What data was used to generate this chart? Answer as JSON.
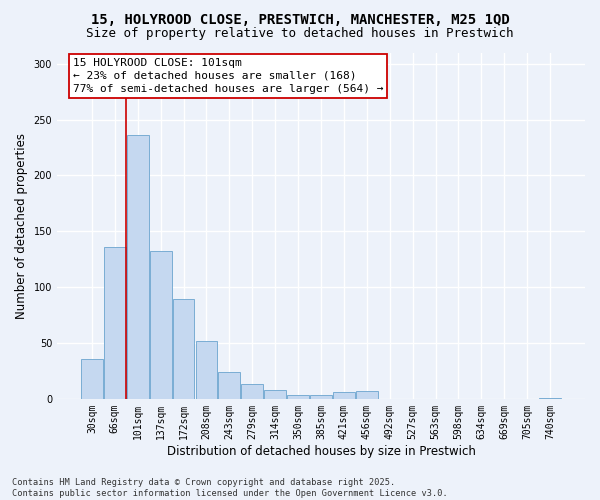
{
  "title_line1": "15, HOLYROOD CLOSE, PRESTWICH, MANCHESTER, M25 1QD",
  "title_line2": "Size of property relative to detached houses in Prestwich",
  "xlabel": "Distribution of detached houses by size in Prestwich",
  "ylabel": "Number of detached properties",
  "categories": [
    "30sqm",
    "66sqm",
    "101sqm",
    "137sqm",
    "172sqm",
    "208sqm",
    "243sqm",
    "279sqm",
    "314sqm",
    "350sqm",
    "385sqm",
    "421sqm",
    "456sqm",
    "492sqm",
    "527sqm",
    "563sqm",
    "598sqm",
    "634sqm",
    "669sqm",
    "705sqm",
    "740sqm"
  ],
  "values": [
    36,
    136,
    236,
    132,
    89,
    52,
    24,
    13,
    8,
    3,
    3,
    6,
    7,
    0,
    0,
    0,
    0,
    0,
    0,
    0,
    1
  ],
  "bar_color": "#c5d8f0",
  "bar_edge_color": "#7aadd4",
  "vline_x": 1.5,
  "vline_color": "#cc0000",
  "annotation_text": "15 HOLYROOD CLOSE: 101sqm\n← 23% of detached houses are smaller (168)\n77% of semi-detached houses are larger (564) →",
  "annotation_box_edgecolor": "#cc0000",
  "ylim": [
    0,
    310
  ],
  "yticks": [
    0,
    50,
    100,
    150,
    200,
    250,
    300
  ],
  "background_color": "#edf2fa",
  "plot_bg_color": "#edf2fa",
  "grid_color": "#ffffff",
  "footer_text": "Contains HM Land Registry data © Crown copyright and database right 2025.\nContains public sector information licensed under the Open Government Licence v3.0.",
  "title_fontsize": 10,
  "subtitle_fontsize": 9,
  "axis_label_fontsize": 8.5,
  "tick_fontsize": 7,
  "annotation_fontsize": 8,
  "ylabel_fontsize": 8.5
}
